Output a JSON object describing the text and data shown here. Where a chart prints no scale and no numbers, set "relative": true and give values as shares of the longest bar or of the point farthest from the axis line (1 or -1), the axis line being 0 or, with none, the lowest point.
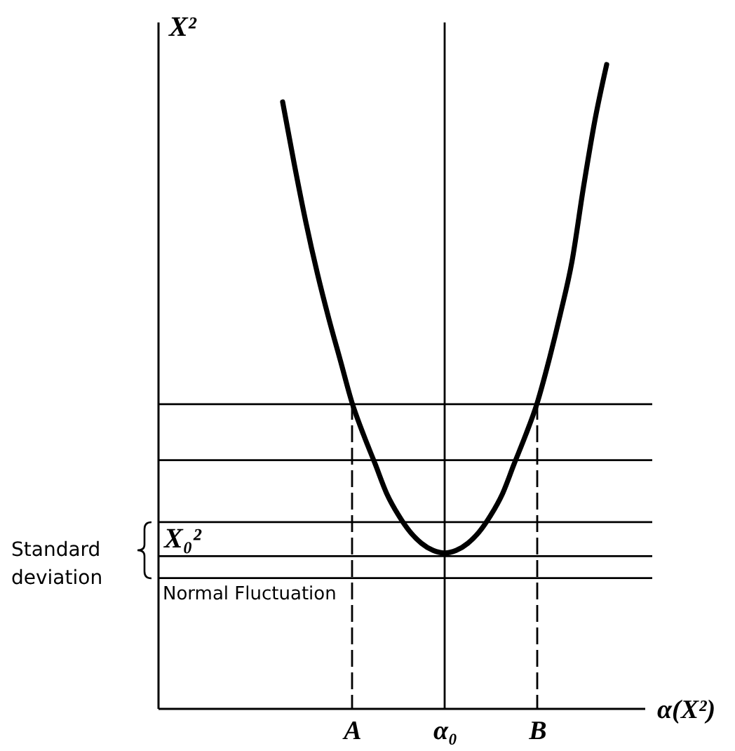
{
  "chart_data": {
    "type": "line",
    "relative": true,
    "ylabel": "X²",
    "xlabel": "α(X²)",
    "categories": [
      null,
      null,
      null,
      null,
      null,
      null,
      "A",
      null,
      null,
      null,
      null,
      null,
      null,
      null,
      "α₀",
      null,
      null,
      null,
      null,
      null,
      null,
      null,
      "B",
      null,
      null,
      null,
      null,
      null,
      null
    ],
    "series": [
      {
        "color": "#000000",
        "values": [
          0.942,
          0.846,
          0.756,
          0.676,
          0.605,
          0.54,
          0.475,
          0.425,
          0.38,
          0.334,
          0.301,
          0.275,
          0.257,
          0.246,
          0.242,
          0.246,
          0.257,
          0.275,
          0.301,
          0.334,
          0.38,
          0.425,
          0.475,
          0.54,
          0.613,
          0.694,
          0.81,
          0.915,
          1.0
        ]
      }
    ],
    "ref_lines": [
      {
        "axis": "y",
        "value": 0.473
      },
      {
        "axis": "y",
        "value": 0.386
      },
      {
        "axis": "y",
        "value": 0.29
      },
      {
        "axis": "y",
        "value": 0.237,
        "label": "X₀²"
      },
      {
        "axis": "y",
        "value": 0.203
      },
      {
        "axis": "x",
        "value": "A",
        "line_style": "dashed"
      },
      {
        "axis": "x",
        "value": "α₀"
      },
      {
        "axis": "x",
        "value": "B",
        "line_style": "dashed"
      }
    ],
    "annotations": [
      "Standard deviation",
      {
        "text": "Normal Fluctuation",
        "y": 0.203
      }
    ]
  }
}
